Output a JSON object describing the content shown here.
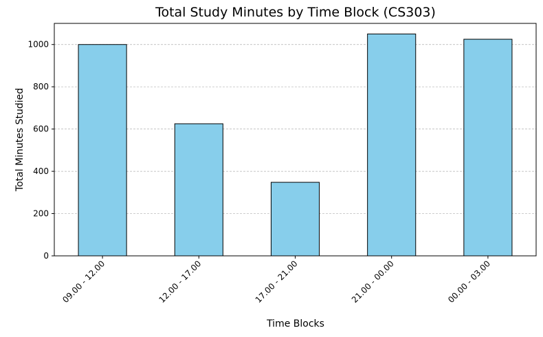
{
  "chart_data": {
    "type": "bar",
    "title": "Total Study Minutes by Time Block (CS303)",
    "xlabel": "Time Blocks",
    "ylabel": "Total Minutes Studied",
    "categories": [
      "09.00 - 12.00",
      "12.00 - 17.00",
      "17.00 - 21.00",
      "21.00 - 00.00",
      "00.00 - 03.00"
    ],
    "values": [
      1000,
      625,
      348,
      1050,
      1025
    ],
    "ylim": [
      0,
      1100
    ],
    "yticks": [
      0,
      200,
      400,
      600,
      800,
      1000
    ],
    "grid": "y-dashed",
    "bar_color": "#87ceeb",
    "bar_edge_color": "#000000"
  }
}
